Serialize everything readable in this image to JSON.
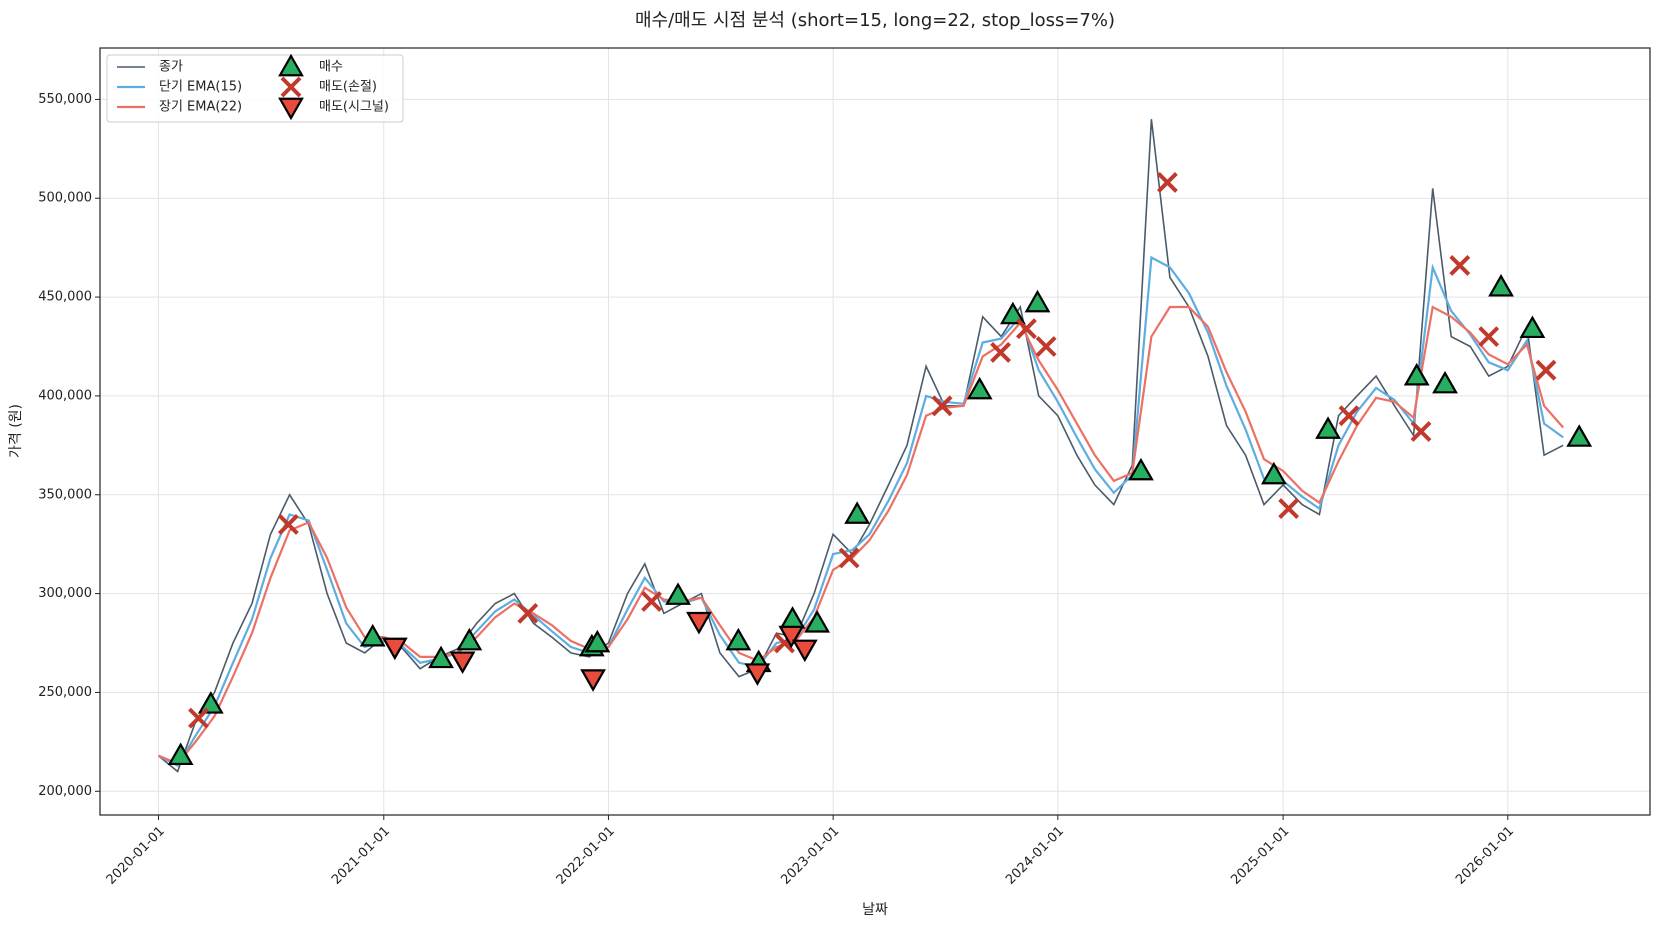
{
  "chart_data": {
    "type": "line",
    "title": "매수/매도 시점 분석 (short=15, long=22, stop_loss=7%)",
    "x_label": "날짜",
    "y_label": "가격 (원)",
    "grid": true,
    "legend": "upper left",
    "xlim": [
      "2019-09-28",
      "2026-08-20"
    ],
    "xticks": [
      "2020-01-01",
      "2021-01-01",
      "2022-01-01",
      "2023-01-01",
      "2024-01-01",
      "2025-01-01",
      "2026-01-01"
    ],
    "ylim": [
      188000,
      576000
    ],
    "yticks": [
      {
        "value": 200000,
        "label": "200,000"
      },
      {
        "value": 250000,
        "label": "250,000"
      },
      {
        "value": 300000,
        "label": "300,000"
      },
      {
        "value": 350000,
        "label": "350,000"
      },
      {
        "value": 400000,
        "label": "400,000"
      },
      {
        "value": 450000,
        "label": "450,000"
      },
      {
        "value": 500000,
        "label": "500,000"
      },
      {
        "value": 550000,
        "label": "550,000"
      }
    ],
    "x": [
      "2020-01-01",
      "2020-02-01",
      "2020-03-01",
      "2020-04-01",
      "2020-05-01",
      "2020-06-01",
      "2020-07-01",
      "2020-08-01",
      "2020-09-01",
      "2020-10-01",
      "2020-11-01",
      "2020-12-01",
      "2021-01-01",
      "2021-02-01",
      "2021-03-01",
      "2021-04-01",
      "2021-05-01",
      "2021-06-01",
      "2021-07-01",
      "2021-08-01",
      "2021-09-01",
      "2021-10-01",
      "2021-11-01",
      "2021-12-01",
      "2022-01-01",
      "2022-02-01",
      "2022-03-01",
      "2022-04-01",
      "2022-05-01",
      "2022-06-01",
      "2022-07-01",
      "2022-08-01",
      "2022-09-01",
      "2022-10-01",
      "2022-11-01",
      "2022-12-01",
      "2023-01-01",
      "2023-02-01",
      "2023-03-01",
      "2023-04-01",
      "2023-05-01",
      "2023-06-01",
      "2023-07-01",
      "2023-08-01",
      "2023-09-01",
      "2023-10-01",
      "2023-11-01",
      "2023-12-01",
      "2024-01-01",
      "2024-02-01",
      "2024-03-01",
      "2024-04-01",
      "2024-05-01",
      "2024-06-01",
      "2024-07-01",
      "2024-08-01",
      "2024-09-01",
      "2024-10-01",
      "2024-11-01",
      "2024-12-01",
      "2025-01-01",
      "2025-02-01",
      "2025-03-01",
      "2025-04-01",
      "2025-05-01",
      "2025-06-01",
      "2025-07-01",
      "2025-08-01",
      "2025-09-01",
      "2025-10-01",
      "2025-11-01",
      "2025-12-01",
      "2026-01-01",
      "2026-02-01",
      "2026-03-01",
      "2026-04-01"
    ],
    "series": [
      {
        "name": "종가",
        "kind": "line",
        "color": "#4a5b6c",
        "width": 1.6,
        "values": [
          218000,
          210000,
          235000,
          250000,
          275000,
          295000,
          330000,
          350000,
          335000,
          300000,
          275000,
          270000,
          278000,
          272000,
          262000,
          268000,
          272000,
          285000,
          295000,
          300000,
          285000,
          278000,
          270000,
          268000,
          275000,
          300000,
          315000,
          290000,
          295000,
          300000,
          270000,
          258000,
          262000,
          280000,
          278000,
          300000,
          330000,
          320000,
          335000,
          355000,
          375000,
          415000,
          395000,
          395000,
          440000,
          430000,
          445000,
          400000,
          390000,
          370000,
          355000,
          345000,
          365000,
          540000,
          460000,
          445000,
          420000,
          385000,
          370000,
          345000,
          355000,
          345000,
          340000,
          390000,
          400000,
          410000,
          395000,
          380000,
          505000,
          430000,
          425000,
          410000,
          415000,
          435000,
          370000,
          375000
        ]
      },
      {
        "name": "단기 EMA(15)",
        "kind": "line",
        "color": "#5dade2",
        "width": 2.2,
        "values": [
          218000,
          213000,
          228000,
          243000,
          265000,
          287000,
          318000,
          340000,
          337000,
          312000,
          285000,
          273000,
          276000,
          273000,
          265000,
          267000,
          270000,
          281000,
          291000,
          297000,
          289000,
          281000,
          273000,
          270000,
          273000,
          292000,
          308000,
          296000,
          295000,
          298000,
          279000,
          265000,
          263000,
          275000,
          277000,
          292000,
          320000,
          322000,
          330000,
          347000,
          366000,
          400000,
          397000,
          396000,
          427000,
          429000,
          440000,
          413000,
          397000,
          379000,
          363000,
          351000,
          360000,
          470000,
          465000,
          452000,
          432000,
          405000,
          383000,
          358000,
          357000,
          349000,
          343000,
          375000,
          392000,
          404000,
          398000,
          386000,
          465000,
          443000,
          431000,
          417000,
          413000,
          428000,
          386000,
          379000
        ]
      },
      {
        "name": "장기 EMA(22)",
        "kind": "line",
        "color": "#ec7063",
        "width": 2.2,
        "values": [
          218000,
          214000,
          225000,
          238000,
          258000,
          280000,
          308000,
          332000,
          336000,
          318000,
          293000,
          278000,
          278000,
          275000,
          268000,
          268000,
          270000,
          278000,
          288000,
          295000,
          290000,
          284000,
          276000,
          272000,
          273000,
          287000,
          303000,
          297000,
          296000,
          298000,
          284000,
          270000,
          266000,
          273000,
          276000,
          288000,
          312000,
          318000,
          327000,
          342000,
          360000,
          390000,
          394000,
          395000,
          420000,
          426000,
          437000,
          418000,
          403000,
          386000,
          370000,
          357000,
          361000,
          430000,
          445000,
          445000,
          435000,
          412000,
          392000,
          368000,
          362000,
          352000,
          346000,
          367000,
          385000,
          399000,
          397000,
          389000,
          445000,
          440000,
          432000,
          421000,
          416000,
          426000,
          395000,
          384000
        ]
      },
      {
        "name": "매수",
        "kind": "scatter",
        "marker": "triangle-up",
        "color": "#27ae60",
        "x": [
          "2020-02-06",
          "2020-03-26",
          "2020-12-14",
          "2021-04-04",
          "2021-05-20",
          "2021-12-05",
          "2021-12-14",
          "2022-04-24",
          "2022-07-31",
          "2022-09-02",
          "2022-10-27",
          "2022-12-06",
          "2023-02-09",
          "2023-08-27",
          "2023-10-20",
          "2023-11-29",
          "2024-05-15",
          "2024-12-17",
          "2025-03-15",
          "2025-08-06",
          "2025-09-21",
          "2025-12-21",
          "2026-02-10",
          "2026-04-27"
        ],
        "values": [
          218000,
          244000,
          278000,
          267000,
          276000,
          273000,
          275000,
          299000,
          276000,
          265000,
          287000,
          285000,
          340000,
          403000,
          441000,
          447000,
          362000,
          360000,
          383000,
          410000,
          406000,
          455000,
          434000,
          379000
        ]
      },
      {
        "name": "매도(손절)",
        "kind": "scatter",
        "marker": "x",
        "color": "#c0392b",
        "x": [
          "2020-03-06",
          "2020-07-30",
          "2021-08-23",
          "2022-03-12",
          "2022-10-14",
          "2023-01-27",
          "2023-06-27",
          "2023-09-30",
          "2023-11-11",
          "2023-12-13",
          "2024-06-27",
          "2025-01-10",
          "2025-04-18",
          "2025-08-13",
          "2025-10-15",
          "2025-12-01",
          "2026-03-04"
        ],
        "values": [
          237000,
          335000,
          290000,
          296000,
          275000,
          318000,
          395000,
          422000,
          434000,
          425000,
          508000,
          343000,
          390000,
          382000,
          466000,
          430000,
          413000
        ]
      },
      {
        "name": "매도(시그널)",
        "kind": "scatter",
        "marker": "triangle-down",
        "color": "#e74c3c",
        "x": [
          "2021-01-19",
          "2021-05-09",
          "2021-12-07",
          "2022-05-28",
          "2022-08-31",
          "2022-10-25",
          "2022-11-16"
        ],
        "values": [
          273000,
          266000,
          257000,
          286000,
          260000,
          279000,
          272000
        ]
      }
    ]
  }
}
